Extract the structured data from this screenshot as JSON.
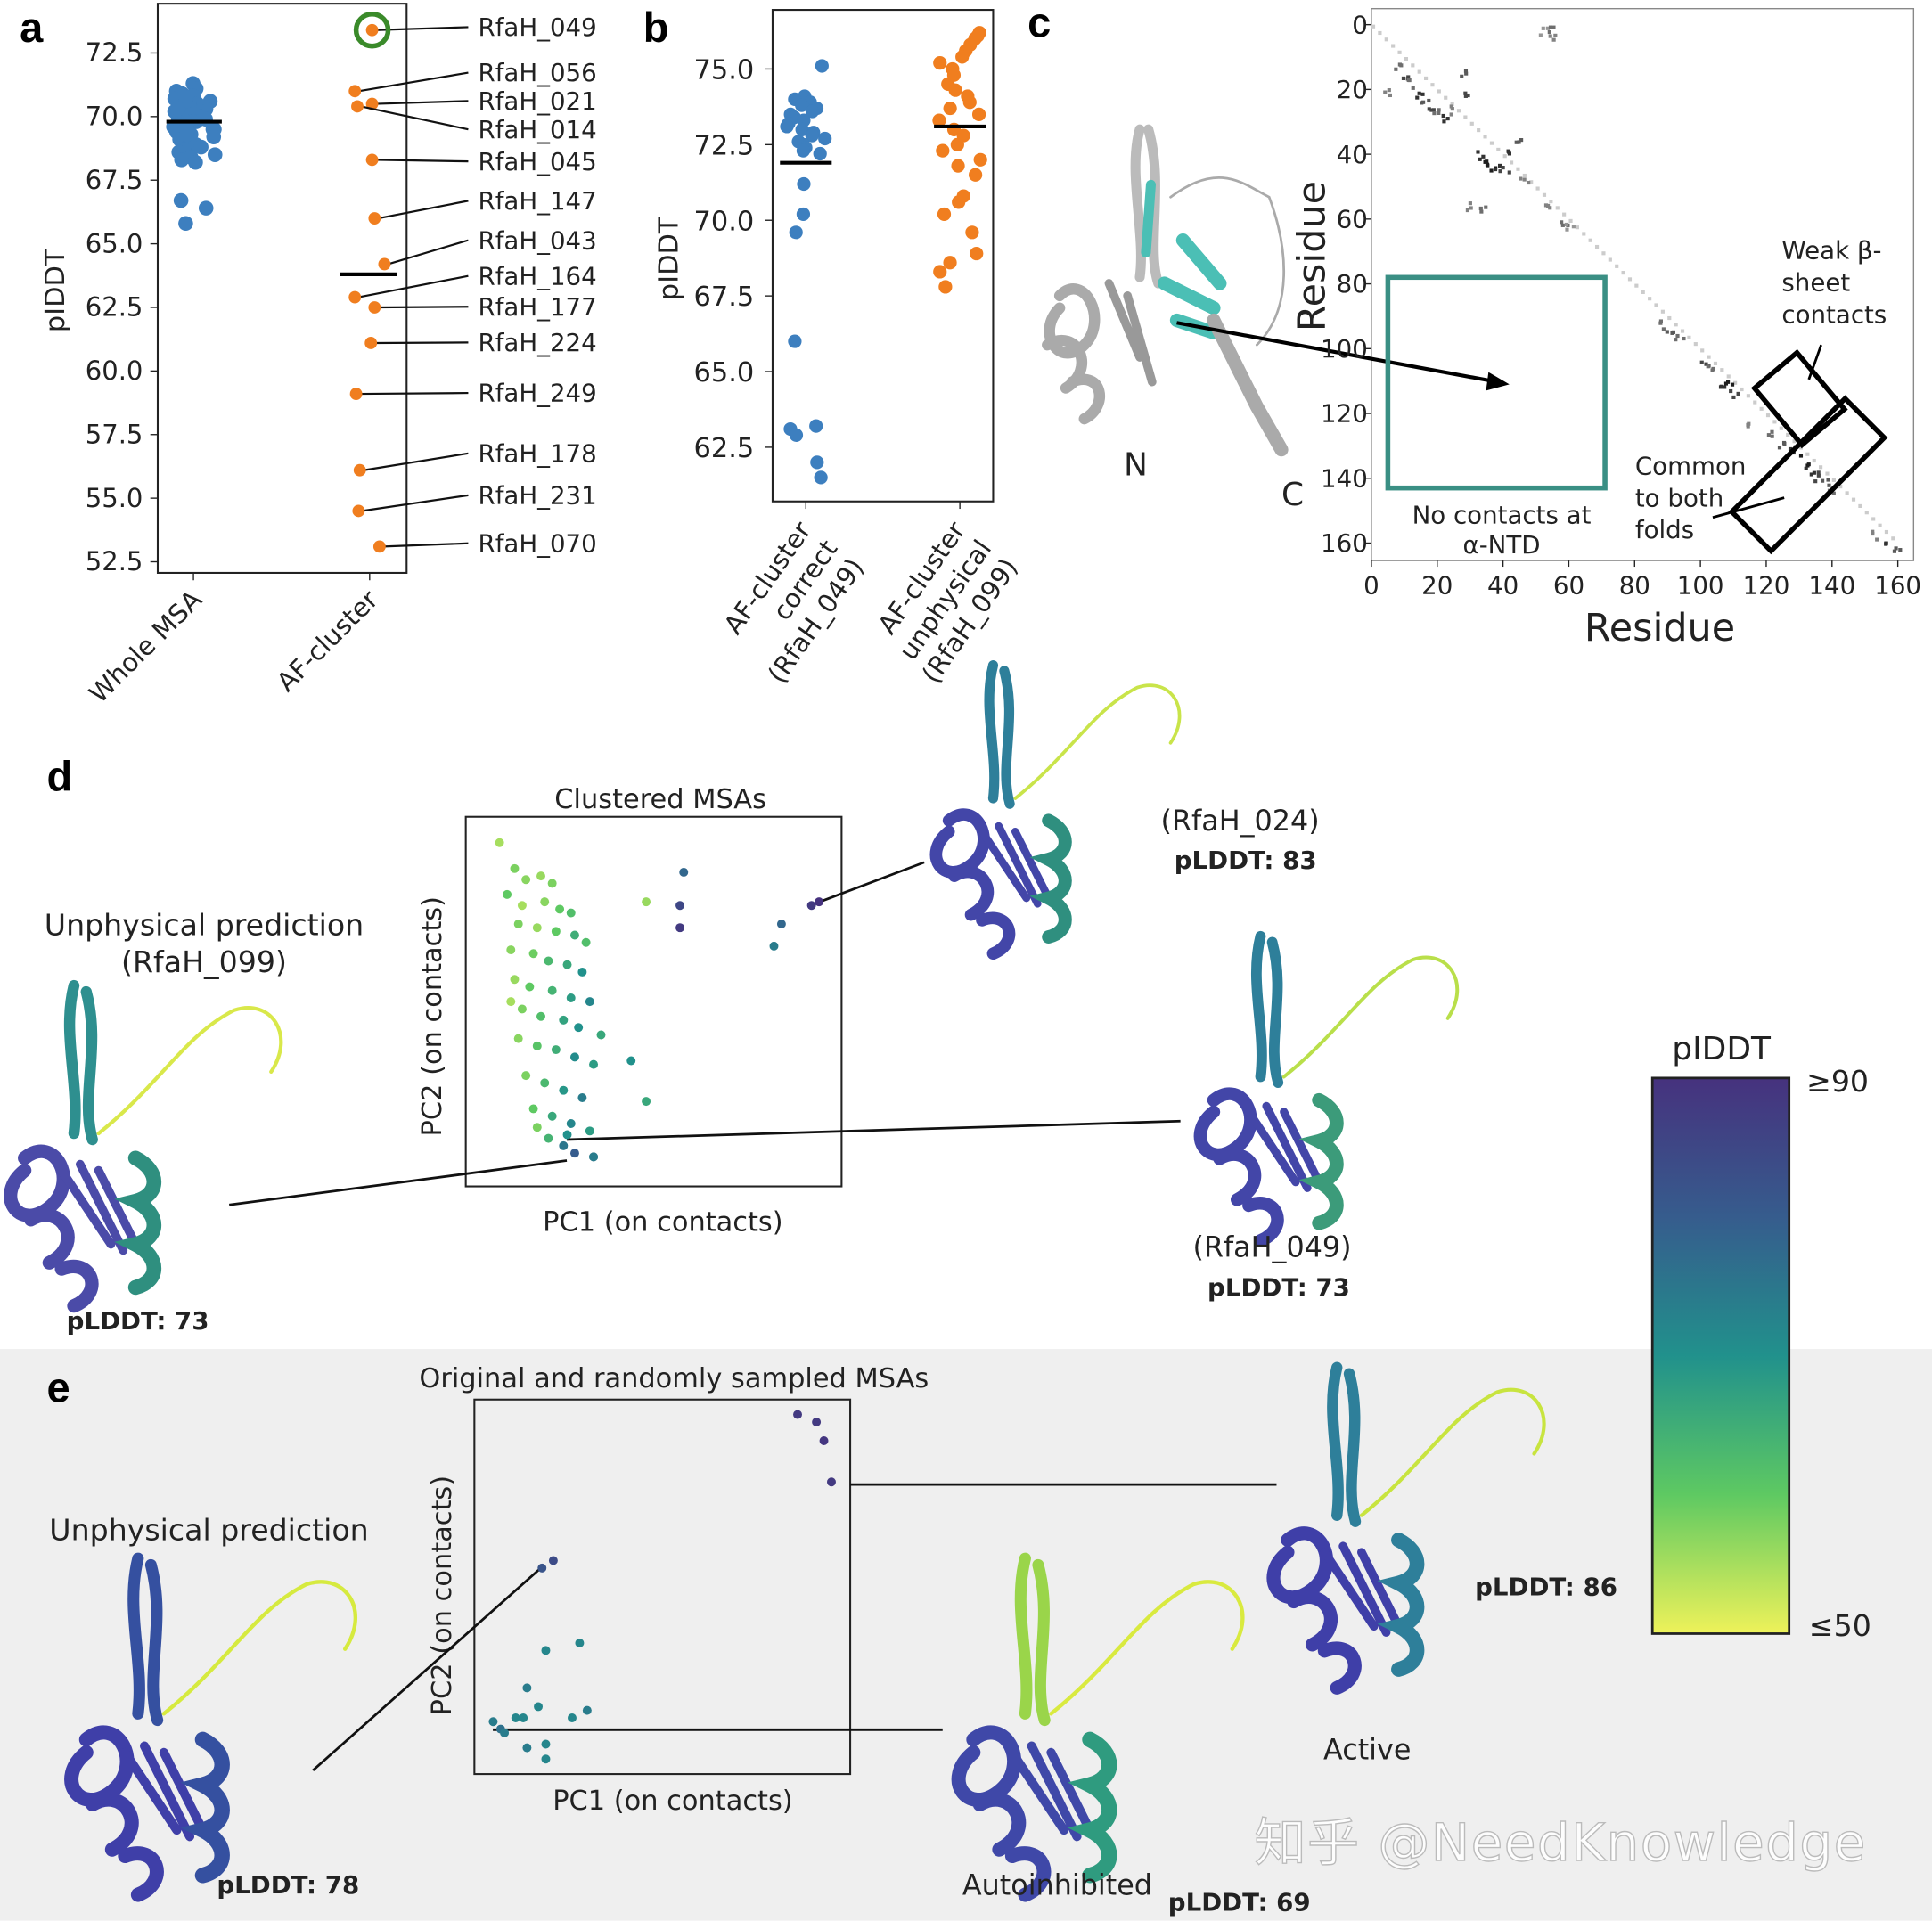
{
  "panels": {
    "a": "a",
    "b": "b",
    "c": "c",
    "d": "d",
    "e": "e"
  },
  "colors": {
    "blue": "#3d7fbf",
    "orange": "#f07e1f",
    "highlight_ring": "#3a8a2a",
    "teal_box": "#3a8f84",
    "gray_band": "#efefef"
  },
  "chart_data": [
    {
      "id": "a",
      "type": "scatter",
      "ylabel": "pIDDT",
      "categories": [
        "Whole MSA",
        "AF-cluster"
      ],
      "yticks": [
        "52.5",
        "55.0",
        "57.5",
        "60.0",
        "62.5",
        "65.0",
        "67.5",
        "70.0",
        "72.5"
      ],
      "ylim": [
        52,
        74.4
      ],
      "series": [
        {
          "category": "Whole MSA",
          "color": "#3d7fbf",
          "mean": 69.8,
          "values": [
            71.3,
            71.1,
            71.0,
            70.9,
            70.8,
            70.8,
            70.7,
            70.6,
            70.5,
            70.5,
            70.4,
            70.3,
            70.2,
            70.2,
            70.1,
            70.0,
            70.0,
            69.9,
            69.8,
            69.8,
            69.7,
            69.6,
            69.5,
            69.5,
            69.4,
            69.3,
            69.2,
            69.1,
            69.0,
            68.9,
            68.8,
            68.7,
            68.6,
            68.5,
            68.4,
            68.3,
            68.2,
            70.6,
            70.3,
            69.9,
            69.6,
            69.3,
            66.7,
            66.4,
            65.8
          ]
        },
        {
          "category": "AF-cluster",
          "color": "#f07e1f",
          "mean": 63.8,
          "points": [
            {
              "label": "RfaH_049",
              "value": 73.4,
              "highlighted": true
            },
            {
              "label": "RfaH_056",
              "value": 71.0
            },
            {
              "label": "RfaH_021",
              "value": 70.5
            },
            {
              "label": "RfaH_014",
              "value": 70.4
            },
            {
              "label": "RfaH_045",
              "value": 68.3
            },
            {
              "label": "RfaH_147",
              "value": 66.0
            },
            {
              "label": "RfaH_043",
              "value": 64.2
            },
            {
              "label": "RfaH_164",
              "value": 62.9
            },
            {
              "label": "RfaH_177",
              "value": 62.5
            },
            {
              "label": "RfaH_224",
              "value": 61.1
            },
            {
              "label": "RfaH_249",
              "value": 59.1
            },
            {
              "label": "RfaH_178",
              "value": 56.1
            },
            {
              "label": "RfaH_231",
              "value": 54.5
            },
            {
              "label": "RfaH_070",
              "value": 53.1
            }
          ]
        }
      ]
    },
    {
      "id": "b",
      "type": "scatter",
      "ylabel": "pIDDT",
      "categories": [
        "AF-cluster\ncorrect\n(RfaH_049)",
        "AF-cluster\nunphysical\n(RfaH_099)"
      ],
      "yticks": [
        "62.5",
        "65.0",
        "67.5",
        "70.0",
        "72.5",
        "75.0"
      ],
      "ylim": [
        60.8,
        76.5
      ],
      "series": [
        {
          "category": "AF-cluster correct (RfaH_049)",
          "color": "#3d7fbf",
          "mean": 71.9,
          "values": [
            75.1,
            74.1,
            74.0,
            73.9,
            73.8,
            73.7,
            73.6,
            73.5,
            73.4,
            73.3,
            73.2,
            73.1,
            73.0,
            72.9,
            72.8,
            72.7,
            72.6,
            72.5,
            72.4,
            72.3,
            72.2,
            71.2,
            70.2,
            69.6,
            66.0,
            63.2,
            63.1,
            62.9,
            62.0,
            61.5
          ]
        },
        {
          "category": "AF-cluster unphysical (RfaH_099)",
          "color": "#f07e1f",
          "mean": 73.1,
          "values": [
            76.2,
            76.1,
            76.0,
            75.8,
            75.6,
            75.4,
            75.2,
            75.0,
            74.8,
            74.5,
            74.3,
            74.1,
            73.9,
            73.7,
            73.5,
            73.3,
            73.0,
            72.8,
            72.5,
            72.3,
            72.0,
            71.8,
            71.5,
            70.8,
            70.6,
            70.2,
            69.6,
            68.9,
            68.6,
            68.3,
            67.8
          ]
        }
      ]
    },
    {
      "id": "c",
      "type": "heatmap",
      "xlabel": "Residue",
      "ylabel": "Residue",
      "xticks": [
        "0",
        "20",
        "40",
        "60",
        "80",
        "100",
        "120",
        "140",
        "160"
      ],
      "yticks": [
        "0",
        "20",
        "40",
        "60",
        "80",
        "100",
        "120",
        "140",
        "160"
      ],
      "xlim": [
        0,
        162
      ],
      "ylim": [
        0,
        162
      ],
      "contacts": [
        [
          10,
          15,
          0.8
        ],
        [
          12,
          18,
          0.6
        ],
        [
          14,
          22,
          0.9
        ],
        [
          16,
          24,
          0.7
        ],
        [
          18,
          27,
          0.8
        ],
        [
          20,
          26,
          0.6
        ],
        [
          22,
          28,
          0.9
        ],
        [
          25,
          26,
          0.5
        ],
        [
          5,
          20,
          0.5
        ],
        [
          8,
          12,
          0.6
        ],
        [
          27,
          14,
          0.7
        ],
        [
          28,
          20,
          0.8
        ],
        [
          32,
          40,
          0.9
        ],
        [
          34,
          42,
          1.0
        ],
        [
          36,
          43,
          1.0
        ],
        [
          38,
          44,
          0.9
        ],
        [
          40,
          45,
          0.8
        ],
        [
          42,
          38,
          0.9
        ],
        [
          44,
          36,
          0.7
        ],
        [
          46,
          48,
          0.5
        ],
        [
          30,
          56,
          0.5
        ],
        [
          33,
          57,
          0.6
        ],
        [
          52,
          2,
          0.4
        ],
        [
          53,
          56,
          0.5
        ],
        [
          58,
          60,
          0.6
        ],
        [
          60,
          62,
          0.4
        ],
        [
          88,
          92,
          0.6
        ],
        [
          90,
          94,
          0.7
        ],
        [
          93,
          96,
          0.6
        ],
        [
          101,
          104,
          0.8
        ],
        [
          103,
          106,
          0.6
        ],
        [
          106,
          110,
          0.9
        ],
        [
          108,
          111,
          1.0
        ],
        [
          110,
          113,
          0.8
        ],
        [
          114,
          124,
          0.5
        ],
        [
          121,
          126,
          0.6
        ],
        [
          125,
          130,
          0.7
        ],
        [
          128,
          131,
          0.9
        ],
        [
          131,
          134,
          1.0
        ],
        [
          133,
          137,
          0.9
        ],
        [
          135,
          139,
          0.8
        ],
        [
          138,
          141,
          0.7
        ],
        [
          140,
          144,
          0.6
        ],
        [
          153,
          157,
          0.5
        ],
        [
          157,
          160,
          0.9
        ],
        [
          159,
          161,
          0.7
        ],
        [
          54,
          1,
          0.6
        ],
        [
          55,
          3,
          0.5
        ]
      ],
      "boxes": [
        {
          "label": "No contacts at\nα-NTD",
          "range_x": [
            5,
            71
          ],
          "range_y": [
            78,
            143
          ]
        }
      ],
      "annotations": {
        "weak": "Weak β-\nsheet\ncontacts",
        "common": "Common\nto both\nfolds"
      },
      "structure_labels": {
        "n": "N",
        "c": "C"
      }
    },
    {
      "id": "d",
      "type": "scatter",
      "title": "Clustered MSAs",
      "xlabel": "PC1 (on contacts)",
      "ylabel": "PC2 (on contacts)",
      "color_by": "pLDDT",
      "points": [
        [
          0.9,
          9.3,
          55
        ],
        [
          1.3,
          8.6,
          58
        ],
        [
          1.6,
          8.3,
          57
        ],
        [
          2.0,
          8.4,
          56
        ],
        [
          2.3,
          8.2,
          58
        ],
        [
          1.1,
          7.9,
          60
        ],
        [
          1.5,
          7.6,
          55
        ],
        [
          2.1,
          7.7,
          57
        ],
        [
          2.5,
          7.5,
          60
        ],
        [
          2.8,
          7.4,
          62
        ],
        [
          1.4,
          7.1,
          58
        ],
        [
          1.9,
          7.0,
          56
        ],
        [
          2.4,
          6.9,
          60
        ],
        [
          2.9,
          6.8,
          65
        ],
        [
          3.2,
          6.6,
          62
        ],
        [
          1.2,
          6.4,
          57
        ],
        [
          1.8,
          6.3,
          59
        ],
        [
          2.2,
          6.1,
          63
        ],
        [
          2.7,
          6.0,
          66
        ],
        [
          3.1,
          5.8,
          70
        ],
        [
          1.3,
          5.6,
          56
        ],
        [
          1.7,
          5.4,
          60
        ],
        [
          2.3,
          5.3,
          64
        ],
        [
          2.8,
          5.1,
          68
        ],
        [
          3.3,
          5.0,
          72
        ],
        [
          1.5,
          4.8,
          58
        ],
        [
          2.0,
          4.6,
          62
        ],
        [
          2.6,
          4.5,
          67
        ],
        [
          3.0,
          4.3,
          70
        ],
        [
          3.6,
          4.1,
          66
        ],
        [
          1.4,
          4.0,
          57
        ],
        [
          1.9,
          3.8,
          61
        ],
        [
          2.4,
          3.7,
          65
        ],
        [
          2.9,
          3.5,
          71
        ],
        [
          3.4,
          3.3,
          68
        ],
        [
          4.4,
          3.4,
          70
        ],
        [
          4.8,
          2.3,
          66
        ],
        [
          1.6,
          3.0,
          58
        ],
        [
          2.1,
          2.8,
          63
        ],
        [
          2.6,
          2.6,
          69
        ],
        [
          3.1,
          2.4,
          74
        ],
        [
          1.8,
          2.1,
          60
        ],
        [
          2.3,
          1.9,
          66
        ],
        [
          2.8,
          1.7,
          72
        ],
        [
          2.2,
          1.3,
          64
        ],
        [
          2.6,
          1.1,
          75
        ],
        [
          2.9,
          0.9,
          80
        ],
        [
          3.4,
          0.8,
          77
        ],
        [
          2.7,
          1.4,
          70
        ],
        [
          3.3,
          1.5,
          68
        ],
        [
          1.9,
          1.6,
          58
        ],
        [
          1.2,
          5.0,
          55
        ],
        [
          4.8,
          7.7,
          56
        ],
        [
          5.8,
          8.5,
          78
        ],
        [
          5.7,
          7.6,
          85
        ],
        [
          5.7,
          7.0,
          88
        ],
        [
          8.4,
          7.1,
          78
        ],
        [
          8.2,
          6.5,
          74
        ],
        [
          9.2,
          7.6,
          88
        ],
        [
          9.4,
          7.7,
          90
        ],
        [
          3.4,
          0.8,
          74
        ]
      ]
    },
    {
      "id": "e",
      "type": "scatter",
      "title": "Original and randomly sampled MSAs",
      "xlabel": "PC1 (on contacts)",
      "ylabel": "PC2 (on contacts)",
      "color_by": "pLDDT",
      "points": [
        [
          8.6,
          9.6,
          88
        ],
        [
          9.1,
          9.4,
          88
        ],
        [
          9.3,
          8.9,
          89
        ],
        [
          9.5,
          7.8,
          88
        ],
        [
          2.1,
          5.7,
          84
        ],
        [
          1.8,
          5.5,
          82
        ],
        [
          2.8,
          3.5,
          72
        ],
        [
          1.9,
          3.3,
          72
        ],
        [
          1.4,
          2.3,
          74
        ],
        [
          1.3,
          1.5,
          72
        ],
        [
          1.7,
          1.8,
          72
        ],
        [
          3.0,
          1.7,
          74
        ],
        [
          2.6,
          1.5,
          72
        ],
        [
          0.5,
          1.4,
          74
        ],
        [
          0.7,
          1.2,
          76
        ],
        [
          0.8,
          1.1,
          74
        ],
        [
          1.4,
          0.7,
          74
        ],
        [
          1.9,
          0.8,
          72
        ],
        [
          1.9,
          0.4,
          72
        ],
        [
          1.1,
          1.5,
          72
        ]
      ]
    }
  ],
  "panel_d": {
    "left_structure": {
      "title": "Unphysical prediction\n(RfaH_099)",
      "plddt": "pLDDT: 73"
    },
    "top_structure": {
      "title": "(RfaH_024)",
      "plddt": "pLDDT: 83"
    },
    "right_structure": {
      "title": "(RfaH_049)",
      "plddt": "pLDDT: 73"
    }
  },
  "panel_e": {
    "left_structure": {
      "title": "Unphysical prediction",
      "plddt": "pLDDT: 78"
    },
    "middle_structure": {
      "title": "Autoinhibited",
      "plddt": "pLDDT: 69"
    },
    "right_structure": {
      "title": "Active",
      "plddt": "pLDDT: 86"
    }
  },
  "colorbar": {
    "title": "pIDDT",
    "max_label": "≥90",
    "min_label": "≤50",
    "range": [
      50,
      90
    ],
    "colormap": "viridis"
  },
  "watermark": "知乎 @NeedKnowledge"
}
